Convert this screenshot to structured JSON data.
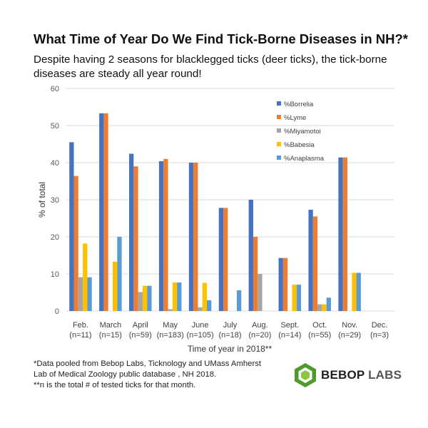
{
  "header": {
    "title": "What Time of Year Do We Find Tick-Borne Diseases in NH?*",
    "subtitle": "Despite having 2 seasons for blacklegged ticks (deer ticks), the tick-borne diseases are steady all year round!"
  },
  "footnotes": {
    "line1": "*Data pooled from Bebop Labs, Ticknology and UMass Amherst",
    "line2": "Lab of Medical Zoology public database , NH 2018.",
    "line3": "**n is the total # of tested ticks for that month."
  },
  "logo": {
    "word1": "BEBOP",
    "word2": "LABS"
  },
  "colors": {
    "borrelia": "#4472c4",
    "lyme": "#ed7d31",
    "miyamotoi": "#a5a5a5",
    "babesia": "#ffc000",
    "anaplasma": "#5b9bd5",
    "grid": "#d9d9d9",
    "logo_green": "#4e9a2a"
  },
  "chart_data": {
    "type": "bar",
    "title": "",
    "xlabel": "Time of year in 2018**",
    "ylabel": "% of total",
    "ylim": [
      0,
      60
    ],
    "yticks": [
      0,
      10,
      20,
      30,
      40,
      50,
      60
    ],
    "grid": true,
    "legend_position": "top-right",
    "categories": [
      [
        "Feb.",
        "(n=11)"
      ],
      [
        "March",
        "(n=15)"
      ],
      [
        "April",
        "(n=59)"
      ],
      [
        "May",
        "(n=183)"
      ],
      [
        "June",
        "(n=105)"
      ],
      [
        "July",
        "(n=18)"
      ],
      [
        "Aug.",
        "(n=20)"
      ],
      [
        "Sept.",
        "(n=14)"
      ],
      [
        "Oct.",
        "(n=55)"
      ],
      [
        "Nov.",
        "(n=29)"
      ],
      [
        "Dec.",
        "(n=3)"
      ]
    ],
    "series": [
      {
        "name": "%Borrelia",
        "color": "#4472c4",
        "values": [
          45.5,
          53.3,
          42.4,
          40.4,
          40.0,
          27.8,
          30.0,
          14.3,
          27.3,
          41.4,
          0
        ]
      },
      {
        "name": "%Lyme",
        "color": "#ed7d31",
        "values": [
          36.4,
          53.3,
          39.0,
          41.0,
          40.0,
          27.8,
          20.0,
          14.3,
          25.5,
          41.4,
          0
        ]
      },
      {
        "name": "%Miyamotoi",
        "color": "#a5a5a5",
        "values": [
          9.1,
          0,
          5.1,
          0.5,
          1.0,
          0,
          10.0,
          0,
          1.8,
          0,
          0
        ]
      },
      {
        "name": "%Babesia",
        "color": "#ffc000",
        "values": [
          18.2,
          13.3,
          6.8,
          7.7,
          7.6,
          0,
          0,
          7.1,
          1.8,
          10.3,
          0
        ]
      },
      {
        "name": "%Anaplasma",
        "color": "#5b9bd5",
        "values": [
          9.1,
          20.0,
          6.8,
          7.7,
          2.9,
          5.6,
          0,
          7.1,
          3.6,
          10.3,
          0
        ]
      }
    ]
  }
}
